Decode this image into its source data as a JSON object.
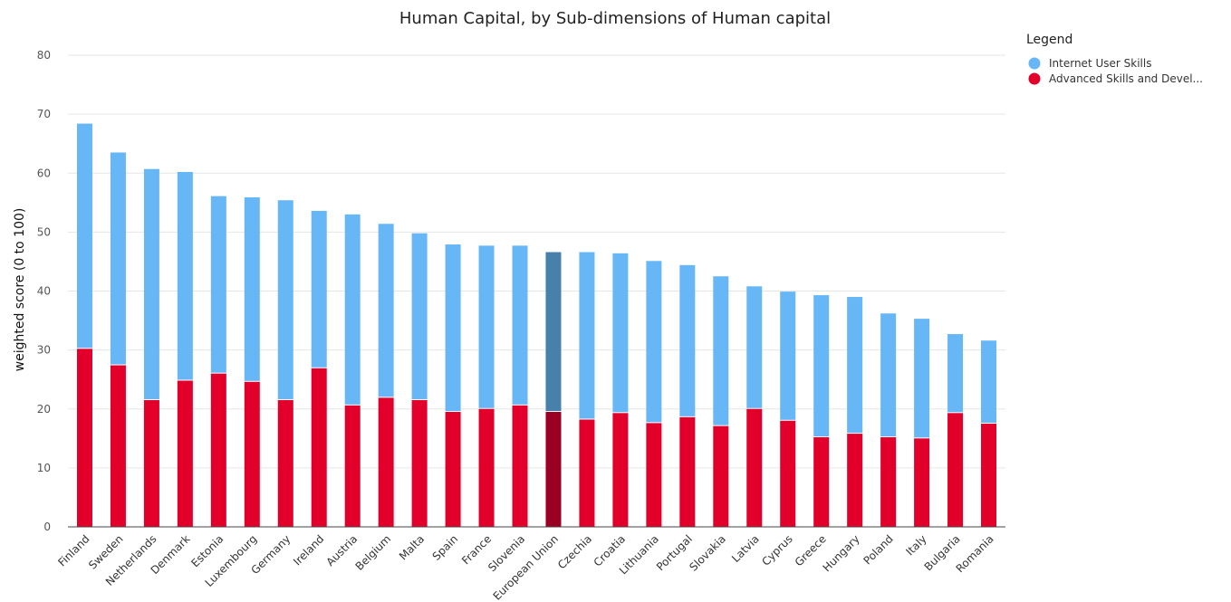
{
  "chart_data": {
    "type": "bar",
    "stacked": true,
    "title": "Human Capital, by Sub-dimensions of Human capital",
    "xlabel": "",
    "ylabel": "weighted score (0 to 100)",
    "ylim": [
      0,
      80
    ],
    "yticks": [
      0,
      10,
      20,
      30,
      40,
      50,
      60,
      70,
      80
    ],
    "grid": true,
    "legend": {
      "title": "Legend",
      "placement": "top-right"
    },
    "categories": [
      "Finland",
      "Sweden",
      "Netherlands",
      "Denmark",
      "Estonia",
      "Luxembourg",
      "Germany",
      "Ireland",
      "Austria",
      "Belgium",
      "Malta",
      "Spain",
      "France",
      "Slovenia",
      "European Union",
      "Czechia",
      "Croatia",
      "Lithuania",
      "Portugal",
      "Slovakia",
      "Latvia",
      "Cyprus",
      "Greece",
      "Hungary",
      "Poland",
      "Italy",
      "Bulgaria",
      "Romania"
    ],
    "highlight_category": "European Union",
    "series": [
      {
        "name": "Advanced Skills and Devel...",
        "color": "#e2002b",
        "highlight_color": "#9a0022",
        "values": [
          30.2,
          27.4,
          21.5,
          24.8,
          26.0,
          24.6,
          21.5,
          26.9,
          20.6,
          21.9,
          21.5,
          19.5,
          20.0,
          20.6,
          19.5,
          18.2,
          19.3,
          17.6,
          18.6,
          17.1,
          20.0,
          18.0,
          15.2,
          15.8,
          15.2,
          15.0,
          19.3,
          17.5
        ]
      },
      {
        "name": "Internet User Skills",
        "color": "#67b7f7",
        "highlight_color": "#4680ab",
        "values": [
          38.2,
          36.1,
          39.2,
          35.4,
          30.1,
          31.3,
          33.9,
          26.7,
          32.4,
          29.5,
          28.3,
          28.4,
          27.7,
          27.1,
          27.1,
          28.4,
          27.1,
          27.5,
          25.8,
          25.4,
          20.8,
          21.9,
          24.1,
          23.2,
          21.0,
          20.3,
          13.4,
          14.1
        ]
      }
    ],
    "legend_order": [
      "Internet User Skills",
      "Advanced Skills and Devel..."
    ]
  }
}
